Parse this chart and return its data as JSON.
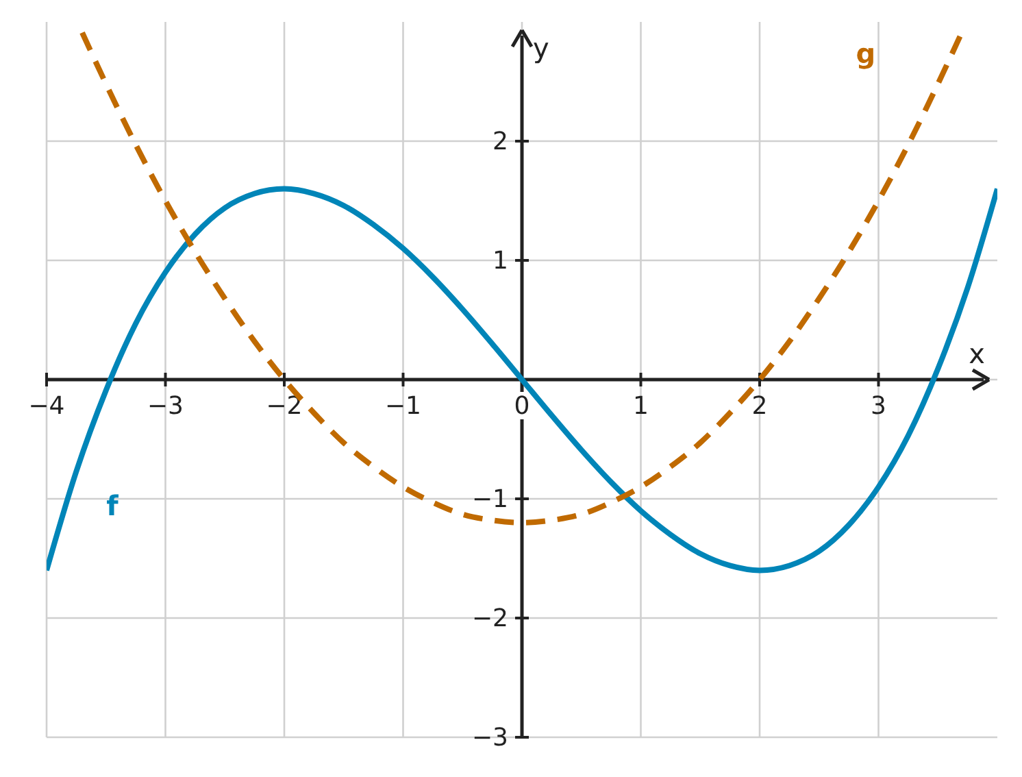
{
  "chart_data": {
    "type": "line",
    "xlabel": "x",
    "ylabel": "y",
    "xlim": [
      -4,
      4
    ],
    "ylim": [
      -3,
      3
    ],
    "xticks": [
      {
        "value": -4,
        "label": "−4"
      },
      {
        "value": -3,
        "label": "−3"
      },
      {
        "value": -2,
        "label": "−2"
      },
      {
        "value": -1,
        "label": "−1"
      },
      0,
      1,
      2,
      3
    ],
    "yticks": [
      {
        "value": -3,
        "label": "−3"
      },
      {
        "value": -2,
        "label": "−2"
      },
      {
        "value": -1,
        "label": "−1"
      },
      {
        "value": 0,
        "label": null
      },
      1,
      2
    ],
    "grid": true,
    "marker": "none",
    "series": [
      {
        "name": "f",
        "color": "#0085b8",
        "line_style": "solid",
        "x": [
          -4,
          -3.75,
          -3.5,
          -3.25,
          -3,
          -2.75,
          -2.5,
          -2.25,
          -2,
          -1.75,
          -1.5,
          -1.25,
          -1,
          -0.75,
          -0.5,
          -0.25,
          0,
          0.25,
          0.5,
          0.75,
          1,
          1.25,
          1.5,
          1.75,
          2,
          2.25,
          2.5,
          2.75,
          3,
          3.25,
          3.5,
          3.75,
          4
        ],
        "values": [
          -1.6,
          -0.77,
          -0.09,
          0.47,
          0.9,
          1.22,
          1.44,
          1.56,
          1.6,
          1.56,
          1.46,
          1.3,
          1.1,
          0.86,
          0.59,
          0.3,
          0,
          -0.3,
          -0.59,
          -0.86,
          -1.1,
          -1.3,
          -1.46,
          -1.56,
          -1.6,
          -1.56,
          -1.44,
          -1.22,
          -0.9,
          -0.47,
          0.09,
          0.77,
          1.6
        ]
      },
      {
        "name": "g",
        "color": "#c06a00",
        "line_style": "dashed",
        "x": [
          -3.7,
          -3.5,
          -3.25,
          -3,
          -2.75,
          -2.5,
          -2.25,
          -2,
          -1.75,
          -1.5,
          -1.25,
          -1,
          -0.75,
          -0.5,
          -0.25,
          0,
          0.25,
          0.5,
          0.75,
          1,
          1.25,
          1.5,
          1.75,
          2,
          2.25,
          2.5,
          2.75,
          3,
          3.25,
          3.5,
          3.7
        ],
        "values": [
          2.91,
          2.48,
          1.97,
          1.5,
          1.07,
          0.68,
          0.32,
          0,
          -0.28,
          -0.53,
          -0.73,
          -0.9,
          -1.03,
          -1.13,
          -1.18,
          -1.2,
          -1.18,
          -1.13,
          -1.03,
          -0.9,
          -0.73,
          -0.53,
          -0.28,
          0,
          0.32,
          0.68,
          1.07,
          1.5,
          1.97,
          2.48,
          2.91
        ]
      }
    ]
  }
}
